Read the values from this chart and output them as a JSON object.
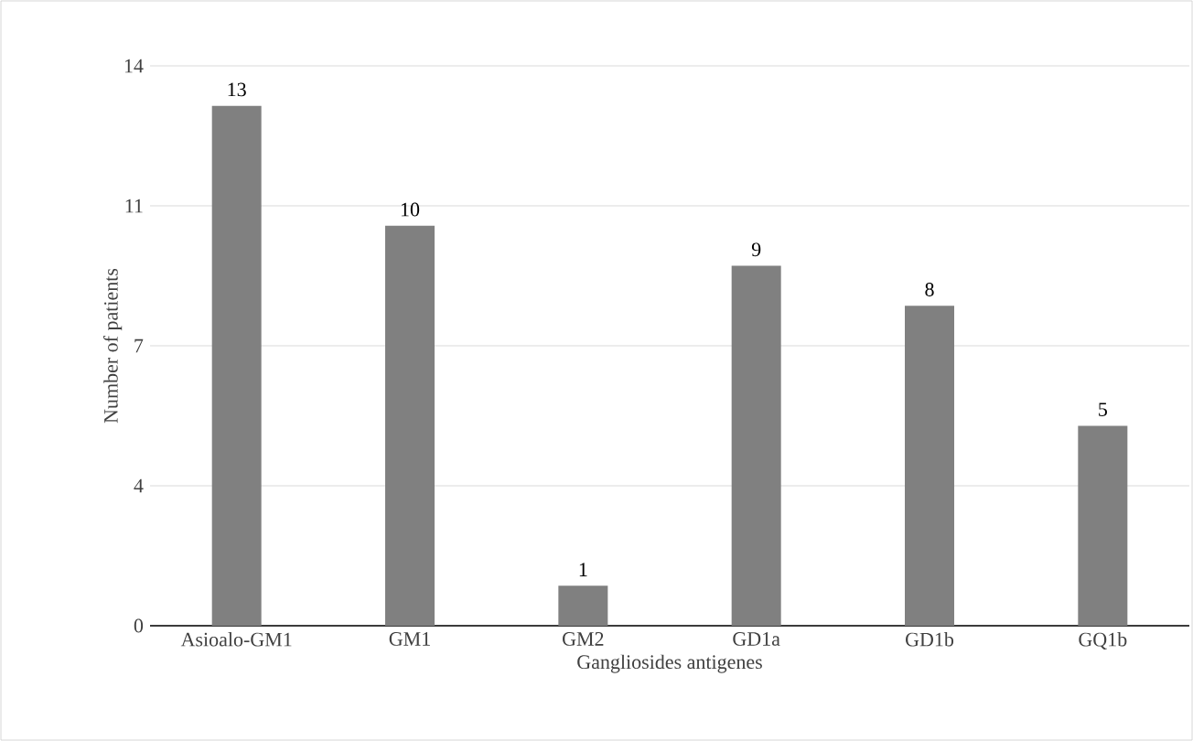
{
  "chart_data": {
    "type": "bar",
    "xlabel": "Gangliosides antigenes",
    "ylabel": "Number of patients",
    "categories": [
      "Asioalo-GM1",
      "GM1",
      "GM2",
      "GD1a",
      "GD1b",
      "GQ1b"
    ],
    "values": [
      13,
      10,
      1,
      9,
      8,
      5
    ],
    "color": "#808080",
    "ylim": [
      0,
      14
    ],
    "yticks": [
      0,
      {
        "value": 3.5,
        "label": "4"
      },
      7,
      {
        "value": 10.5,
        "label": "11"
      },
      14
    ],
    "grid": "y",
    "data_labels": true
  }
}
